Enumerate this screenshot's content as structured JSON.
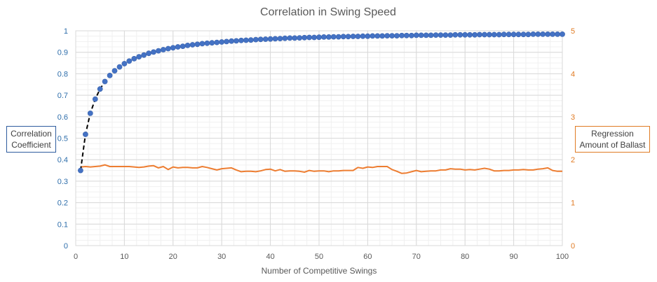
{
  "chart_data": {
    "type": "scatter",
    "title": "Correlation in Swing Speed",
    "xlabel": "Number of Competitive Swings",
    "ylabel": "Correlation Coefficient",
    "y2label": "Regression Amount of Ballast",
    "xlim": [
      0,
      100
    ],
    "ylim": [
      0,
      1
    ],
    "y2lim": [
      0,
      5
    ],
    "x_ticks": [
      "0",
      "10",
      "20",
      "30",
      "40",
      "50",
      "60",
      "70",
      "80",
      "90",
      "100"
    ],
    "y_ticks": [
      "0",
      "0.1",
      "0.2",
      "0.3",
      "0.4",
      "0.5",
      "0.6",
      "0.7",
      "0.8",
      "0.9",
      "1"
    ],
    "y2_ticks": [
      "0",
      "1",
      "2",
      "3",
      "4",
      "5"
    ],
    "grid": true,
    "colors": {
      "correlation": "#4472c4",
      "ballast": "#ed7d31",
      "fit": "#000000"
    },
    "series": [
      {
        "name": "Correlation Coefficient",
        "kind": "scatter",
        "axis": "left",
        "x": [
          1,
          2,
          3,
          4,
          5,
          6,
          7,
          8,
          9,
          10,
          11,
          12,
          13,
          14,
          15,
          16,
          17,
          18,
          19,
          20,
          21,
          22,
          23,
          24,
          25,
          26,
          27,
          28,
          29,
          30,
          31,
          32,
          33,
          34,
          35,
          36,
          37,
          38,
          39,
          40,
          41,
          42,
          43,
          44,
          45,
          46,
          47,
          48,
          49,
          50,
          51,
          52,
          53,
          54,
          55,
          56,
          57,
          58,
          59,
          60,
          61,
          62,
          63,
          64,
          65,
          66,
          67,
          68,
          69,
          70,
          71,
          72,
          73,
          74,
          75,
          76,
          77,
          78,
          79,
          80,
          81,
          82,
          83,
          84,
          85,
          86,
          87,
          88,
          89,
          90,
          91,
          92,
          93,
          94,
          95,
          96,
          97,
          98,
          99,
          100
        ],
        "values": [
          0.35,
          0.518,
          0.616,
          0.682,
          0.729,
          0.764,
          0.792,
          0.814,
          0.832,
          0.847,
          0.859,
          0.87,
          0.879,
          0.887,
          0.895,
          0.901,
          0.907,
          0.912,
          0.917,
          0.921,
          0.925,
          0.928,
          0.932,
          0.935,
          0.937,
          0.94,
          0.942,
          0.944,
          0.946,
          0.948,
          0.95,
          0.952,
          0.953,
          0.955,
          0.956,
          0.957,
          0.959,
          0.96,
          0.961,
          0.962,
          0.963,
          0.964,
          0.965,
          0.966,
          0.966,
          0.967,
          0.968,
          0.969,
          0.969,
          0.97,
          0.971,
          0.971,
          0.972,
          0.972,
          0.973,
          0.973,
          0.974,
          0.974,
          0.975,
          0.975,
          0.976,
          0.976,
          0.976,
          0.977,
          0.977,
          0.977,
          0.978,
          0.978,
          0.978,
          0.979,
          0.979,
          0.979,
          0.979,
          0.98,
          0.98,
          0.98,
          0.98,
          0.981,
          0.981,
          0.981,
          0.981,
          0.981,
          0.982,
          0.982,
          0.982,
          0.982,
          0.982,
          0.983,
          0.983,
          0.983,
          0.983,
          0.983,
          0.983,
          0.984,
          0.984,
          0.984,
          0.984,
          0.984,
          0.984,
          0.984
        ]
      },
      {
        "name": "Fit",
        "kind": "dashed-line",
        "axis": "left",
        "x": [
          1,
          2,
          3,
          4,
          5,
          6
        ],
        "values": [
          0.35,
          0.518,
          0.616,
          0.682,
          0.729,
          0.764
        ]
      },
      {
        "name": "Regression Amount of Ballast",
        "kind": "line",
        "axis": "right",
        "x": [
          1,
          2,
          3,
          4,
          5,
          6,
          7,
          8,
          9,
          10,
          11,
          12,
          13,
          14,
          15,
          16,
          17,
          18,
          19,
          20,
          21,
          22,
          23,
          24,
          25,
          26,
          27,
          28,
          29,
          30,
          31,
          32,
          33,
          34,
          35,
          36,
          37,
          38,
          39,
          40,
          41,
          42,
          43,
          44,
          45,
          46,
          47,
          48,
          49,
          50,
          51,
          52,
          53,
          54,
          55,
          56,
          57,
          58,
          59,
          60,
          61,
          62,
          63,
          64,
          65,
          66,
          67,
          68,
          69,
          70,
          71,
          72,
          73,
          74,
          75,
          76,
          77,
          78,
          79,
          80,
          81,
          82,
          83,
          84,
          85,
          86,
          87,
          88,
          89,
          90,
          91,
          92,
          93,
          94,
          95,
          96,
          97,
          98,
          99,
          100
        ],
        "values": [
          1.83,
          1.84,
          1.83,
          1.84,
          1.85,
          1.88,
          1.84,
          1.84,
          1.84,
          1.84,
          1.84,
          1.83,
          1.82,
          1.83,
          1.85,
          1.86,
          1.81,
          1.84,
          1.77,
          1.83,
          1.81,
          1.82,
          1.82,
          1.81,
          1.81,
          1.84,
          1.82,
          1.79,
          1.76,
          1.79,
          1.8,
          1.81,
          1.76,
          1.72,
          1.73,
          1.73,
          1.72,
          1.74,
          1.77,
          1.78,
          1.74,
          1.77,
          1.73,
          1.74,
          1.74,
          1.73,
          1.71,
          1.75,
          1.73,
          1.74,
          1.74,
          1.72,
          1.74,
          1.74,
          1.75,
          1.75,
          1.75,
          1.82,
          1.8,
          1.83,
          1.82,
          1.84,
          1.84,
          1.84,
          1.77,
          1.73,
          1.68,
          1.69,
          1.72,
          1.75,
          1.72,
          1.73,
          1.74,
          1.74,
          1.76,
          1.76,
          1.79,
          1.78,
          1.78,
          1.76,
          1.77,
          1.76,
          1.78,
          1.8,
          1.78,
          1.74,
          1.74,
          1.75,
          1.75,
          1.76,
          1.76,
          1.77,
          1.76,
          1.76,
          1.78,
          1.79,
          1.81,
          1.75,
          1.73,
          1.73
        ]
      }
    ]
  }
}
